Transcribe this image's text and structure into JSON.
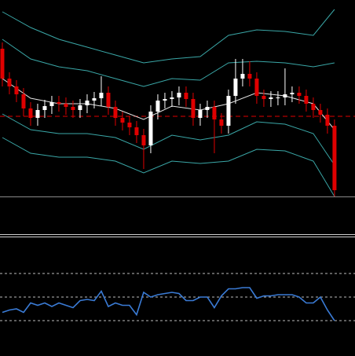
{
  "chart_data": [
    {
      "type": "candlestick",
      "x": [
        0,
        1,
        2,
        3,
        4,
        5,
        6,
        7,
        8,
        9,
        10,
        11,
        12,
        13,
        14,
        15,
        16,
        17,
        18,
        19,
        20,
        21,
        22,
        23,
        24,
        25,
        26,
        27,
        28,
        29,
        30,
        31,
        32,
        33,
        34,
        35,
        36,
        37,
        38,
        39,
        40,
        41,
        42,
        43,
        44,
        45,
        46,
        47
      ],
      "open": [
        188,
        150,
        140,
        130,
        112,
        100,
        110,
        115,
        120,
        118,
        114,
        110,
        116,
        122,
        125,
        132,
        114,
        100,
        94,
        88,
        78,
        65,
        108,
        122,
        124,
        126,
        132,
        124,
        100,
        110,
        114,
        98,
        90,
        128,
        150,
        156,
        150,
        128,
        124,
        126,
        126,
        130,
        132,
        128,
        118,
        110,
        104,
        90
      ],
      "high": [
        196,
        158,
        148,
        138,
        120,
        118,
        123,
        128,
        128,
        126,
        122,
        124,
        130,
        133,
        153,
        140,
        122,
        108,
        102,
        96,
        86,
        116,
        130,
        132,
        134,
        140,
        140,
        132,
        118,
        122,
        122,
        106,
        136,
        175,
        175,
        172,
        158,
        136,
        134,
        134,
        163,
        140,
        140,
        136,
        126,
        118,
        112,
        98
      ],
      "low": [
        140,
        130,
        120,
        102,
        90,
        90,
        100,
        105,
        108,
        104,
        100,
        100,
        106,
        112,
        115,
        104,
        90,
        84,
        78,
        68,
        35,
        55,
        98,
        112,
        114,
        116,
        114,
        90,
        90,
        100,
        55,
        80,
        80,
        118,
        140,
        140,
        118,
        114,
        114,
        116,
        116,
        120,
        118,
        108,
        100,
        94,
        80,
        0
      ],
      "close": [
        150,
        140,
        130,
        112,
        100,
        110,
        115,
        120,
        118,
        114,
        110,
        116,
        122,
        125,
        132,
        114,
        100,
        94,
        88,
        78,
        65,
        108,
        122,
        124,
        126,
        132,
        124,
        100,
        110,
        114,
        98,
        90,
        128,
        150,
        156,
        150,
        128,
        124,
        126,
        126,
        130,
        132,
        128,
        118,
        110,
        104,
        90,
        8
      ],
      "up_color": "#ffffff",
      "down_color": "#e00000",
      "xlim": [
        -0.33,
        49.9
      ],
      "ylim": [
        0,
        250
      ],
      "hline": {
        "value": 102,
        "color": "#e00000"
      },
      "series": [
        {
          "color": "#3aa7a7",
          "x": [
            0,
            4,
            8,
            12,
            16,
            20,
            24,
            28,
            32,
            36,
            40,
            44,
            47
          ],
          "values": [
            235,
            215,
            200,
            190,
            180,
            170,
            175,
            178,
            205,
            212,
            210,
            205,
            238
          ]
        },
        {
          "color": "#3aa7a7",
          "x": [
            0,
            4,
            8,
            12,
            16,
            20,
            24,
            28,
            32,
            36,
            40,
            44,
            47
          ],
          "values": [
            200,
            175,
            165,
            160,
            150,
            140,
            150,
            148,
            170,
            172,
            170,
            165,
            170
          ]
        },
        {
          "color": "#e6e6e6",
          "x": [
            0,
            4,
            8,
            12,
            16,
            20,
            24,
            28,
            32,
            36,
            40,
            44,
            47
          ],
          "values": [
            150,
            125,
            118,
            118,
            112,
            98,
            115,
            110,
            118,
            132,
            128,
            118,
            85
          ]
        },
        {
          "color": "#3aa7a7",
          "x": [
            0,
            4,
            8,
            12,
            16,
            20,
            24,
            28,
            32,
            36,
            40,
            44,
            47
          ],
          "values": [
            105,
            85,
            80,
            80,
            75,
            60,
            78,
            72,
            78,
            95,
            92,
            80,
            40
          ]
        },
        {
          "color": "#3aa7a7",
          "x": [
            0,
            4,
            8,
            12,
            16,
            20,
            24,
            28,
            32,
            36,
            40,
            44,
            47
          ],
          "values": [
            75,
            55,
            50,
            50,
            45,
            30,
            45,
            42,
            45,
            60,
            58,
            45,
            0
          ]
        }
      ]
    },
    {
      "type": "line",
      "x": [
        0,
        1,
        2,
        3,
        4,
        5,
        6,
        7,
        8,
        9,
        10,
        11,
        12,
        13,
        14,
        15,
        16,
        17,
        18,
        19,
        20,
        21,
        22,
        23,
        24,
        25,
        26,
        27,
        28,
        29,
        30,
        31,
        32,
        33,
        34,
        35,
        36,
        37,
        38,
        39,
        40,
        41,
        42,
        43,
        44,
        45,
        46,
        47
      ],
      "values": [
        37,
        39,
        40,
        37,
        45,
        43,
        45,
        42,
        45,
        43,
        41,
        47,
        48,
        47,
        55,
        42,
        45,
        43,
        43,
        35,
        54,
        50,
        52,
        53,
        54,
        53,
        47,
        47,
        50,
        50,
        41,
        51,
        57,
        57,
        58,
        58,
        49,
        51,
        51,
        52,
        52,
        52,
        50,
        45,
        45,
        50,
        39,
        30
      ],
      "color": "#3a7bd5",
      "xlim": [
        -0.33,
        49.9
      ],
      "ylim": [
        0,
        100
      ],
      "yticks": [
        30,
        50,
        70
      ],
      "grid": true
    }
  ]
}
